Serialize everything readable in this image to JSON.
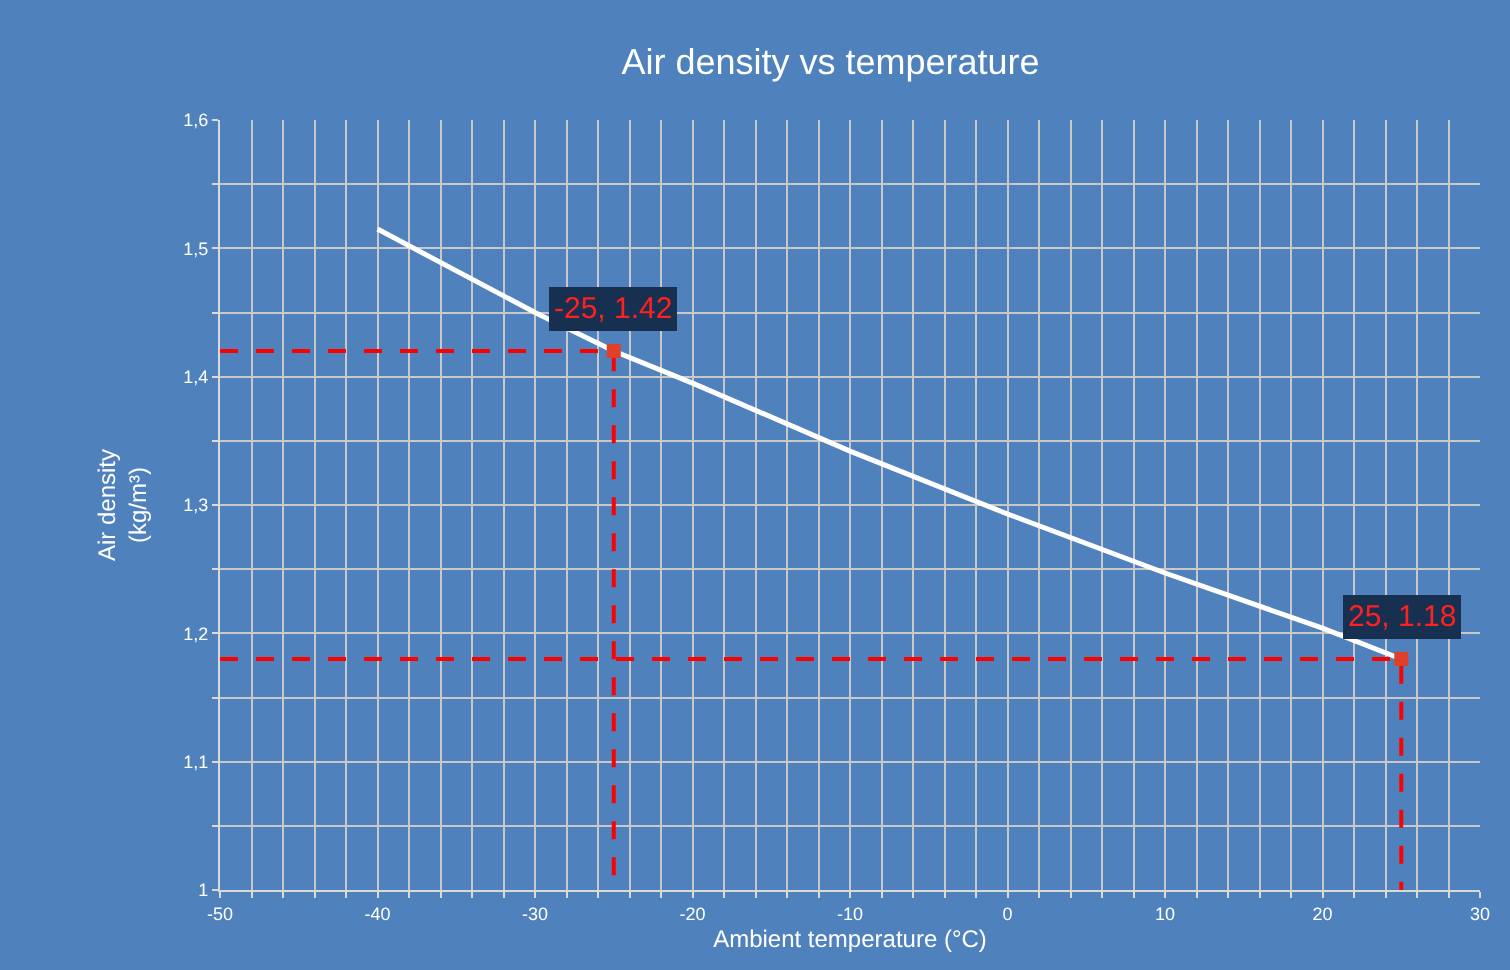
{
  "chart_data": {
    "type": "line",
    "title": "Air density vs temperature",
    "xlabel": "Ambient temperature (°C)",
    "ylabel": "Air density\n(kg/m³)",
    "xlim": [
      -50,
      30
    ],
    "ylim": [
      1,
      1.6
    ],
    "xticks": [
      -50,
      {
        "value": -48,
        "label": null
      },
      {
        "value": -46,
        "label": null
      },
      {
        "value": -44,
        "label": null
      },
      {
        "value": -42,
        "label": null
      },
      -40,
      {
        "value": -38,
        "label": null
      },
      {
        "value": -36,
        "label": null
      },
      {
        "value": -34,
        "label": null
      },
      {
        "value": -32,
        "label": null
      },
      -30,
      {
        "value": -28,
        "label": null
      },
      {
        "value": -26,
        "label": null
      },
      {
        "value": -24,
        "label": null
      },
      {
        "value": -22,
        "label": null
      },
      -20,
      {
        "value": -18,
        "label": null
      },
      {
        "value": -16,
        "label": null
      },
      {
        "value": -14,
        "label": null
      },
      {
        "value": -12,
        "label": null
      },
      -10,
      {
        "value": -8,
        "label": null
      },
      {
        "value": -6,
        "label": null
      },
      {
        "value": -4,
        "label": null
      },
      {
        "value": -2,
        "label": null
      },
      0,
      {
        "value": 2,
        "label": null
      },
      {
        "value": 4,
        "label": null
      },
      {
        "value": 6,
        "label": null
      },
      {
        "value": 8,
        "label": null
      },
      10,
      {
        "value": 12,
        "label": null
      },
      {
        "value": 14,
        "label": null
      },
      {
        "value": 16,
        "label": null
      },
      {
        "value": 18,
        "label": null
      },
      20,
      {
        "value": 22,
        "label": null
      },
      {
        "value": 24,
        "label": null
      },
      {
        "value": 26,
        "label": null
      },
      {
        "value": 28,
        "label": null
      },
      30
    ],
    "yticks": [
      1,
      {
        "value": 1.05,
        "label": null
      },
      {
        "value": 1.1,
        "label": "1,1"
      },
      {
        "value": 1.15,
        "label": null
      },
      {
        "value": 1.2,
        "label": "1,2"
      },
      {
        "value": 1.25,
        "label": null
      },
      {
        "value": 1.3,
        "label": "1,3"
      },
      {
        "value": 1.35,
        "label": null
      },
      {
        "value": 1.4,
        "label": "1,4"
      },
      {
        "value": 1.45,
        "label": null
      },
      {
        "value": 1.5,
        "label": "1,5"
      },
      {
        "value": 1.55,
        "label": null
      },
      {
        "value": 1.6,
        "label": "1,6"
      }
    ],
    "grid": true,
    "series": [
      {
        "color": "#ffffff",
        "marker": "none",
        "line_style": "solid",
        "x": [
          -40,
          -30,
          -25,
          -20,
          -10,
          0,
          10,
          20,
          25
        ],
        "values": [
          1.515,
          1.45,
          1.42,
          1.395,
          1.342,
          1.293,
          1.247,
          1.204,
          1.18
        ]
      },
      {
        "color": "#ff0000",
        "marker": "none",
        "line_style": "dashed",
        "x": [
          -50,
          -25,
          -25
        ],
        "values": [
          1.42,
          1.42,
          1
        ]
      },
      {
        "color": "#ff0000",
        "marker": "none",
        "line_style": "dashed",
        "x": [
          -50,
          25,
          25
        ],
        "values": [
          1.18,
          1.18,
          1
        ]
      },
      {
        "type": "scatter",
        "color": "#e0402a",
        "marker": "square",
        "x": [
          -25,
          25
        ],
        "values": [
          1.42,
          1.18
        ]
      }
    ],
    "annotations": [
      {
        "text": "-25, 1.42",
        "x": -25,
        "y": 1.42
      },
      {
        "text": "25, 1.18",
        "x": 25,
        "y": 1.18
      }
    ]
  }
}
